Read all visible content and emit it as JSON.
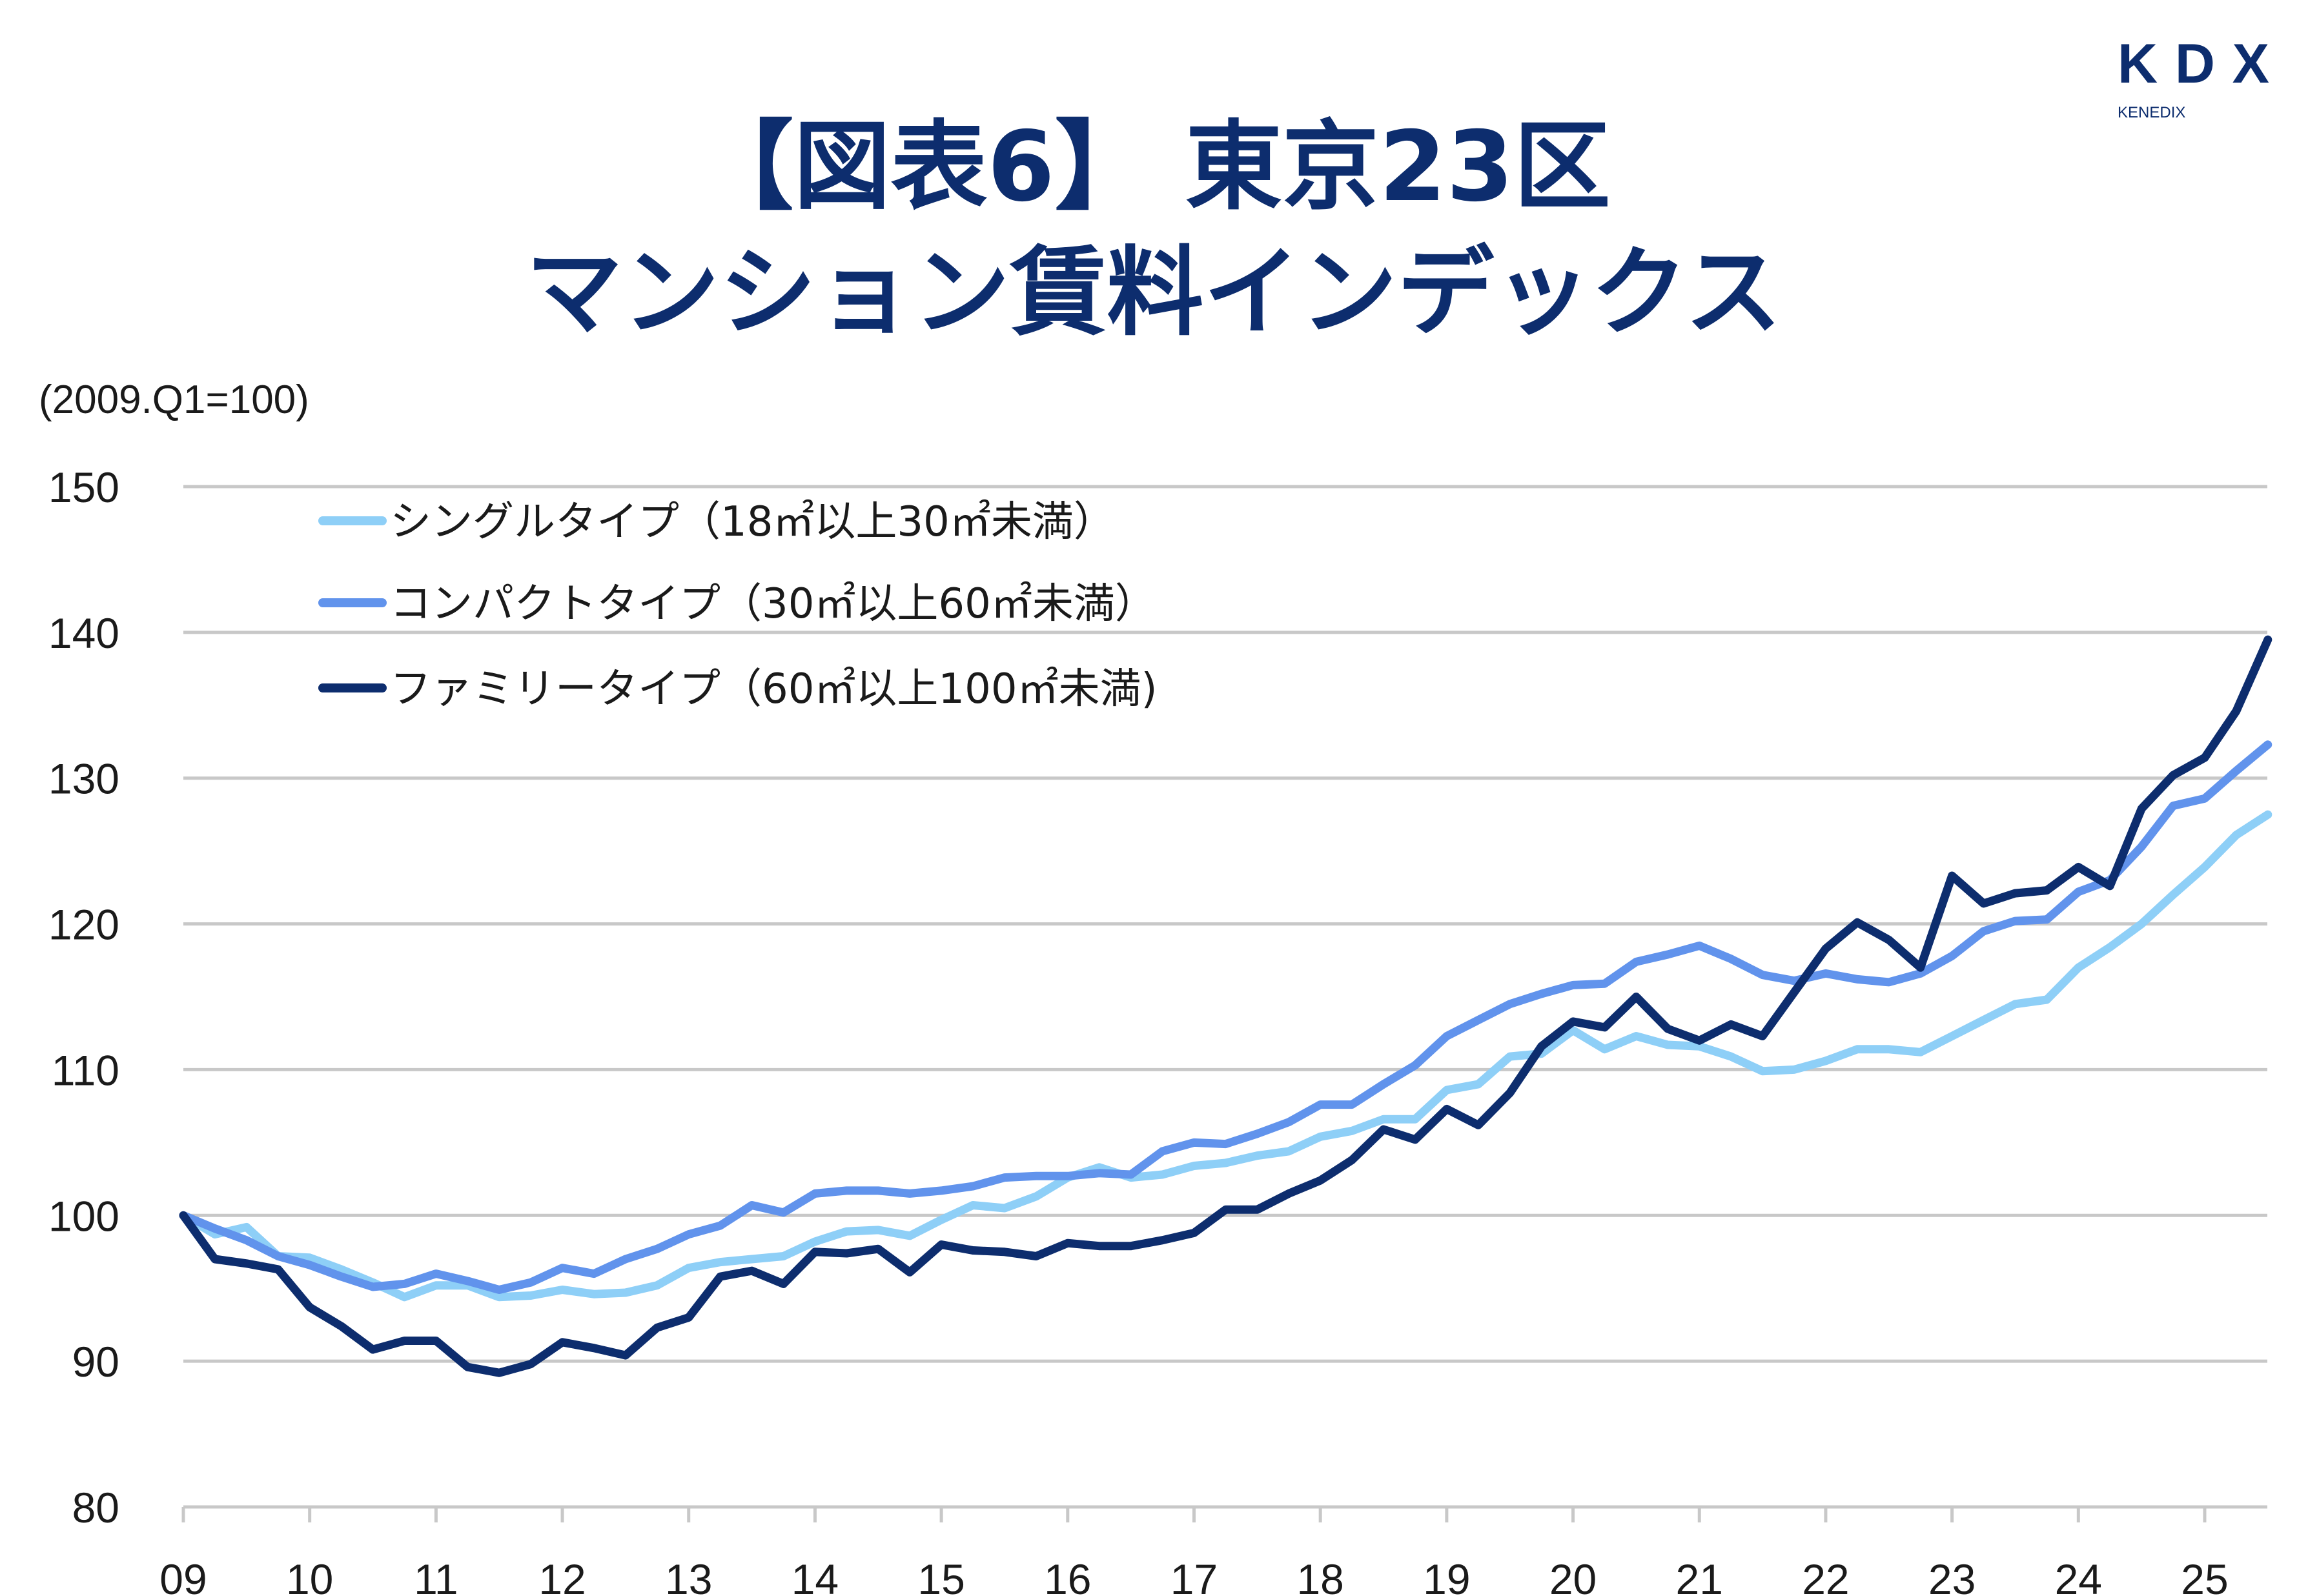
{
  "header": {
    "title_line1": "【図表6】 東京23区",
    "title_line2": "マンション賃料インデックス",
    "logo_main": "KDX",
    "logo_sub": "KENEDIX"
  },
  "chart_data": {
    "type": "line",
    "unit_label": "(2009.Q1=100)",
    "x_tick_labels": [
      "09",
      "10",
      "11",
      "12",
      "13",
      "14",
      "15",
      "16",
      "17",
      "18",
      "19",
      "20",
      "21",
      "22",
      "23",
      "24",
      "25"
    ],
    "x_start": "2009Q1",
    "x_frequency": "quarterly",
    "ylim": [
      80,
      150
    ],
    "y_ticks": [
      80,
      90,
      100,
      110,
      120,
      130,
      140,
      150
    ],
    "grid": true,
    "legend_position": "top-left",
    "series": [
      {
        "name": "シングルタイプ（18㎡以上30㎡未満）",
        "color": "#8ecff7",
        "values": [
          100,
          98.7,
          99.2,
          97.2,
          97.1,
          96.3,
          95.4,
          94.4,
          95.2,
          95.2,
          94.4,
          94.5,
          94.9,
          94.6,
          94.7,
          95.2,
          96.4,
          96.8,
          97.0,
          97.2,
          98.2,
          98.9,
          99.0,
          98.6,
          99.7,
          100.7,
          100.5,
          101.3,
          102.6,
          103.3,
          102.6,
          102.8,
          103.4,
          103.6,
          104.1,
          104.4,
          105.4,
          105.8,
          106.6,
          106.6,
          108.6,
          109.0,
          110.9,
          111.1,
          112.7,
          111.4,
          112.3,
          111.7,
          111.6,
          110.9,
          109.9,
          110.0,
          110.6,
          111.4,
          111.4,
          111.2,
          112.3,
          113.4,
          114.5,
          114.8,
          117.0,
          118.4,
          120.0,
          122.0,
          123.9,
          126.1,
          127.5
        ]
      },
      {
        "name": "コンパクトタイプ（30㎡以上60㎡未満）",
        "color": "#6193ec",
        "values": [
          100,
          99.1,
          98.3,
          97.2,
          96.6,
          95.8,
          95.1,
          95.3,
          96.0,
          95.5,
          94.9,
          95.4,
          96.4,
          96.0,
          97.0,
          97.7,
          98.7,
          99.3,
          100.7,
          100.2,
          101.5,
          101.7,
          101.7,
          101.5,
          101.7,
          102.0,
          102.6,
          102.7,
          102.7,
          102.9,
          102.8,
          104.4,
          105.0,
          104.9,
          105.6,
          106.4,
          107.6,
          107.6,
          109.0,
          110.3,
          112.3,
          113.4,
          114.5,
          115.2,
          115.8,
          115.9,
          117.4,
          117.9,
          118.5,
          117.6,
          116.5,
          116.1,
          116.6,
          116.2,
          116.0,
          116.6,
          117.8,
          119.5,
          120.2,
          120.3,
          122.2,
          123.0,
          125.3,
          128.1,
          128.6,
          130.5,
          132.3
        ]
      },
      {
        "name": "ファミリータイプ（60㎡以上100㎡未満)",
        "color": "#0d2d6e",
        "values": [
          100,
          97.0,
          96.7,
          96.3,
          93.7,
          92.4,
          90.8,
          91.4,
          91.4,
          89.6,
          89.2,
          89.8,
          91.3,
          90.9,
          90.4,
          92.3,
          93.0,
          95.8,
          96.2,
          95.3,
          97.5,
          97.4,
          97.7,
          96.1,
          98.0,
          97.6,
          97.5,
          97.2,
          98.1,
          97.9,
          97.9,
          98.3,
          98.8,
          100.4,
          100.4,
          101.5,
          102.4,
          103.8,
          105.9,
          105.2,
          107.3,
          106.2,
          108.4,
          111.6,
          113.3,
          112.9,
          115.0,
          112.8,
          112.0,
          113.1,
          112.3,
          115.3,
          118.3,
          120.1,
          118.9,
          117.0,
          123.3,
          121.4,
          122.1,
          122.3,
          123.9,
          122.6,
          127.9,
          130.2,
          131.4,
          134.6,
          139.5
        ]
      }
    ]
  }
}
